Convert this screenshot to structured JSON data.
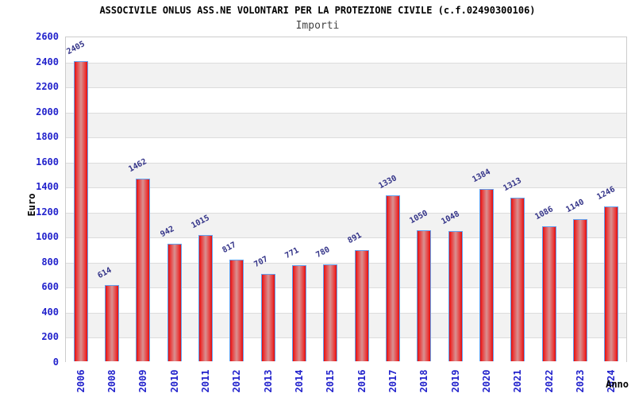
{
  "chart_data": {
    "type": "bar",
    "title": "ASSOCIVILE ONLUS ASS.NE VOLONTARI PER LA PROTEZIONE CIVILE (c.f.02490300106)",
    "subtitle": "Importi",
    "xlabel": "Anno",
    "ylabel": "Euro",
    "categories": [
      "2006",
      "2008",
      "2009",
      "2010",
      "2011",
      "2012",
      "2013",
      "2014",
      "2015",
      "2016",
      "2017",
      "2018",
      "2019",
      "2020",
      "2021",
      "2022",
      "2023",
      "2024"
    ],
    "values": [
      2405,
      614,
      1462,
      942,
      1015,
      817,
      707,
      771,
      780,
      891,
      1330,
      1050,
      1048,
      1384,
      1313,
      1086,
      1140,
      1246
    ],
    "ylim": [
      0,
      2600
    ],
    "ytick_step": 200,
    "legend": "none",
    "grid": "horizontal bands every 200, alternating white and light gray",
    "colors": {
      "bar_edge_red": "#df0d0d",
      "bar_center_red": "#d99191",
      "bar_border_blue": "#62a1ef",
      "axis_tick_label_blue": "#2222cc",
      "value_label_navy": "#333388",
      "band_gray": "#f2f2f2",
      "grid_line_gray": "#dcdcdc",
      "plot_border_gray": "#cccccc",
      "subtitle_gray": "#444444",
      "title_black": "#000000"
    }
  }
}
